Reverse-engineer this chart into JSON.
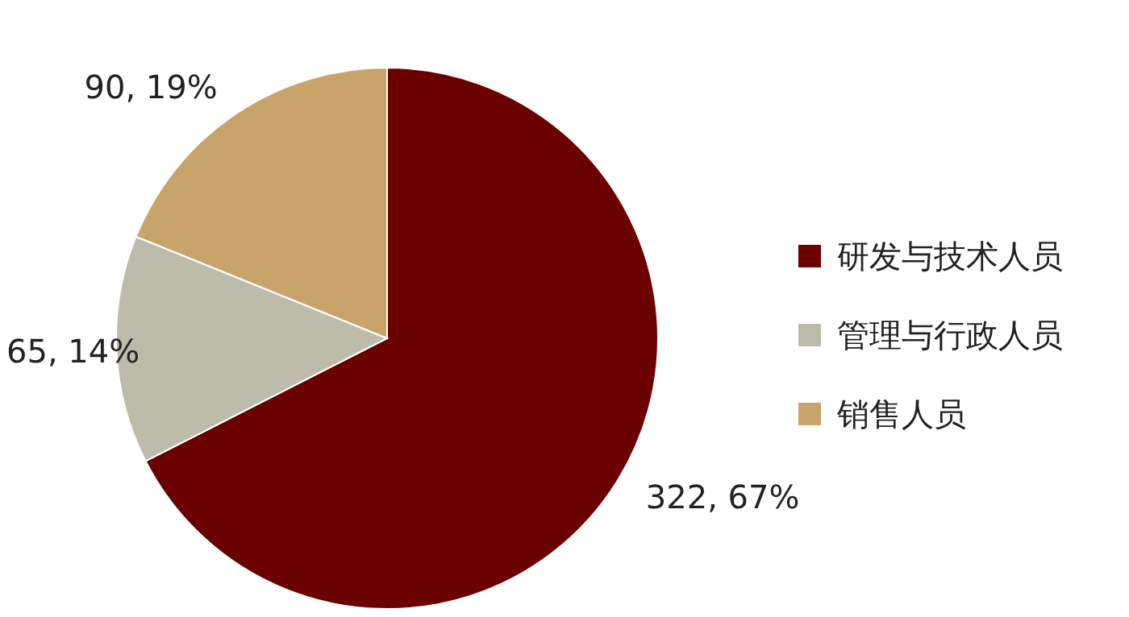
{
  "chart_data": {
    "type": "pie",
    "categories": [
      "研发与技术人员",
      "管理与行政人员",
      "销售人员"
    ],
    "values": [
      322,
      65,
      90
    ],
    "colors": [
      "#6b0000",
      "#bdbcaa",
      "#c9a46a"
    ],
    "value_labels": [
      "322, 67%",
      "65, 14%",
      "90, 19%"
    ],
    "legend": "right"
  }
}
